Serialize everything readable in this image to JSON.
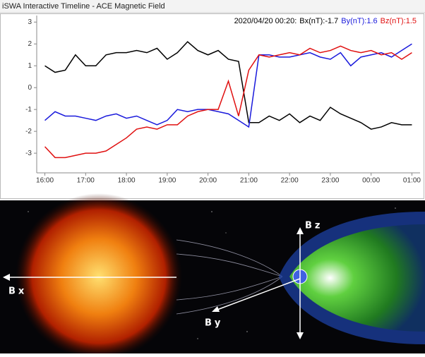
{
  "window": {
    "title": "iSWA Interactive Timeline - ACE Magnetic Field"
  },
  "chart_data": {
    "type": "line",
    "readout": [
      {
        "text": "2020/04/20 00:20:",
        "color": "#000000"
      },
      {
        "text": "Bx(nT):-1.7",
        "color": "#000000"
      },
      {
        "text": "By(nT):1.6",
        "color": "#1a1adc"
      },
      {
        "text": "Bz(nT):1.5",
        "color": "#e01010"
      }
    ],
    "x": [
      16,
      16.25,
      16.5,
      16.75,
      17,
      17.25,
      17.5,
      17.75,
      18,
      18.25,
      18.5,
      18.75,
      19,
      19.25,
      19.5,
      19.75,
      20,
      20.25,
      20.5,
      20.75,
      21,
      21.25,
      21.5,
      21.75,
      22,
      22.25,
      22.5,
      22.75,
      23,
      23.25,
      23.5,
      23.75,
      24,
      24.25,
      24.5,
      24.75,
      25
    ],
    "series": [
      {
        "name": "Bx(nT)",
        "color": "#000000",
        "values": [
          1.0,
          0.7,
          0.8,
          1.5,
          1.0,
          1.0,
          1.5,
          1.6,
          1.6,
          1.7,
          1.6,
          1.8,
          1.3,
          1.6,
          2.1,
          1.7,
          1.5,
          1.7,
          1.3,
          1.2,
          -1.6,
          -1.6,
          -1.3,
          -1.5,
          -1.2,
          -1.6,
          -1.3,
          -1.5,
          -0.9,
          -1.2,
          -1.4,
          -1.6,
          -1.9,
          -1.8,
          -1.6,
          -1.7,
          -1.7
        ]
      },
      {
        "name": "By(nT)",
        "color": "#1a1adc",
        "values": [
          -1.5,
          -1.1,
          -1.3,
          -1.3,
          -1.4,
          -1.5,
          -1.3,
          -1.2,
          -1.4,
          -1.3,
          -1.5,
          -1.7,
          -1.5,
          -1.0,
          -1.1,
          -1.0,
          -1.0,
          -1.1,
          -1.2,
          -1.5,
          -1.8,
          1.5,
          1.5,
          1.4,
          1.4,
          1.5,
          1.6,
          1.4,
          1.3,
          1.6,
          1.0,
          1.4,
          1.5,
          1.6,
          1.4,
          1.7,
          2.0
        ]
      },
      {
        "name": "Bz(nT)",
        "color": "#e01010",
        "values": [
          -2.7,
          -3.2,
          -3.2,
          -3.1,
          -3.0,
          -3.0,
          -2.9,
          -2.6,
          -2.3,
          -1.9,
          -1.8,
          -1.9,
          -1.7,
          -1.7,
          -1.3,
          -1.1,
          -1.0,
          -1.0,
          0.3,
          -1.3,
          0.8,
          1.5,
          1.4,
          1.5,
          1.6,
          1.5,
          1.8,
          1.6,
          1.7,
          1.9,
          1.7,
          1.6,
          1.7,
          1.5,
          1.6,
          1.3,
          1.6
        ]
      }
    ],
    "xlim": [
      15.8,
      25.2
    ],
    "xticks": [
      {
        "value": 16,
        "label": "16:00"
      },
      {
        "value": 17,
        "label": "17:00"
      },
      {
        "value": 18,
        "label": "18:00"
      },
      {
        "value": 19,
        "label": "19:00"
      },
      {
        "value": 20,
        "label": "20:00"
      },
      {
        "value": 21,
        "label": "21:00"
      },
      {
        "value": 22,
        "label": "22:00"
      },
      {
        "value": 23,
        "label": "23:00"
      },
      {
        "value": 24,
        "label": "00:00"
      },
      {
        "value": 25,
        "label": "01:00"
      }
    ],
    "ylim": [
      -3.9,
      3.3
    ],
    "yticks": [
      -3,
      -2,
      -1,
      0,
      1,
      2,
      3
    ]
  },
  "illustration": {
    "labels": {
      "bz": "Bz",
      "bx": "Bx",
      "by": "By"
    }
  }
}
